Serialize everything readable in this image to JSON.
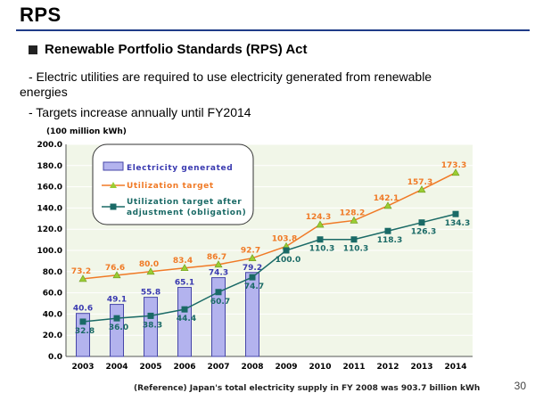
{
  "slide": {
    "title": "RPS",
    "heading": "Renewable Portfolio Standards (RPS) Act",
    "bullet1_line1": "- Electric utilities are required to use electricity generated from renewable",
    "bullet1_line2": "energies",
    "bullet2": "- Targets increase annually until FY2014",
    "page_number": "30"
  },
  "colors": {
    "bar_fill": "#b3b3ee",
    "bar_stroke": "#4646a8",
    "target_line": "#f07a26",
    "adjusted_line": "#1a6a66",
    "bar_label": "#3a3ab0",
    "chart_bg": "#f1f6e8",
    "grid": "#ffffff"
  },
  "chart_data": {
    "type": "bar+line",
    "unit_label": "(100 million kWh)",
    "categories": [
      "2003",
      "2004",
      "2005",
      "2006",
      "2007",
      "2008",
      "2009",
      "2010",
      "2011",
      "2012",
      "2013",
      "2014"
    ],
    "ylim": [
      0,
      200
    ],
    "yticks": [
      "0.0",
      "20.0",
      "40.0",
      "60.0",
      "80.0",
      "100.0",
      "120.0",
      "140.0",
      "160.0",
      "180.0",
      "200.0"
    ],
    "series": [
      {
        "name": "Electricity generated",
        "kind": "bar",
        "values": [
          40.6,
          49.1,
          55.8,
          65.1,
          74.3,
          79.2,
          null,
          null,
          null,
          null,
          null,
          null
        ]
      },
      {
        "name": "Utilization target",
        "kind": "line",
        "marker": "triangle",
        "values": [
          73.2,
          76.6,
          80.0,
          83.4,
          86.7,
          92.7,
          103.8,
          124.3,
          128.2,
          142.1,
          157.3,
          173.3
        ]
      },
      {
        "name": "Utilization target after adjustment (obligation)",
        "kind": "line",
        "marker": "square",
        "values": [
          32.8,
          36.0,
          38.3,
          44.4,
          60.7,
          74.7,
          100.0,
          110.3,
          110.3,
          118.3,
          126.3,
          134.3
        ]
      }
    ],
    "legend": {
      "position": "top-left",
      "bars_label": "Electricity generated",
      "target_label": "Utilization target",
      "adjusted_label_line1": "Utilization target after",
      "adjusted_label_line2": "adjustment (obligation)"
    },
    "footnote": "(Reference) Japan's total electricity supply in FY 2008 was 903.7 billion kWh"
  }
}
